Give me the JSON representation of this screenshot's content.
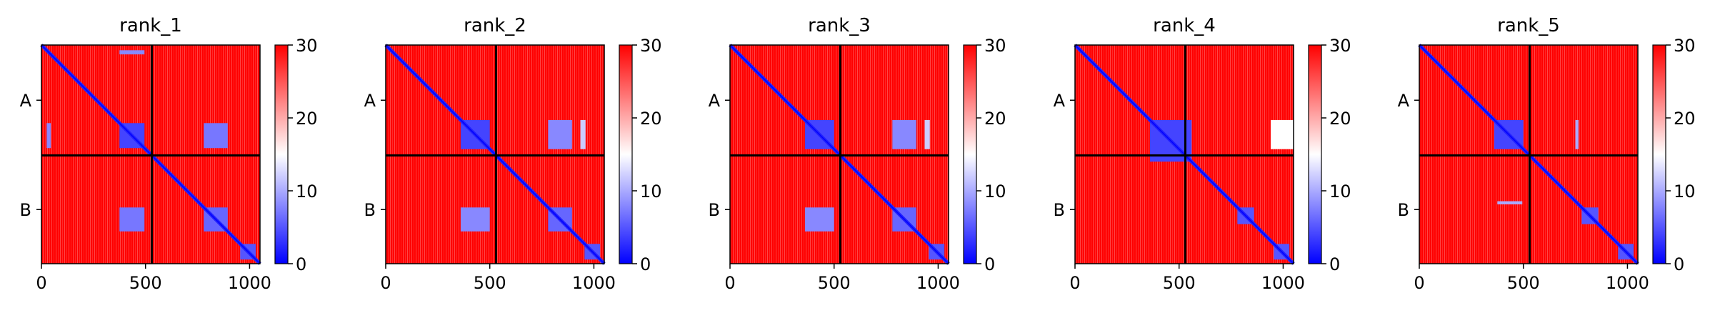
{
  "chart_data": {
    "type": "heatmap",
    "colormap": {
      "name": "bwr",
      "low": "#0000ff",
      "mid": "#ffffff",
      "high": "#ff0000"
    },
    "colorbar": {
      "range": [
        0,
        30
      ],
      "ticks": [
        "0",
        "10",
        "20",
        "30"
      ]
    },
    "shared": {
      "x_range": [
        0,
        1050
      ],
      "y_range": [
        0,
        1050
      ],
      "x_ticks": [
        "0",
        "500",
        "1000"
      ],
      "chain_boundary": 530,
      "chains": [
        "A",
        "B"
      ],
      "chain_label_positions": [
        265,
        790
      ]
    },
    "panels": [
      {
        "title": "rank_1",
        "blocks": [
          {
            "x": [
              375,
              495
            ],
            "y": [
              375,
              495
            ],
            "value": 4
          },
          {
            "x": [
              780,
              895
            ],
            "y": [
              780,
              895
            ],
            "value": 6
          },
          {
            "x": [
              955,
              1030
            ],
            "y": [
              955,
              1030
            ],
            "value": 5
          },
          {
            "x": [
              375,
              495
            ],
            "y": [
              780,
              895
            ],
            "value": 7
          },
          {
            "x": [
              780,
              895
            ],
            "y": [
              375,
              495
            ],
            "value": 7
          },
          {
            "x": [
              25,
              45
            ],
            "y": [
              375,
              495
            ],
            "value": 8
          },
          {
            "x": [
              375,
              495
            ],
            "y": [
              25,
              45
            ],
            "value": 8
          }
        ]
      },
      {
        "title": "rank_2",
        "blocks": [
          {
            "x": [
              360,
              500
            ],
            "y": [
              360,
              500
            ],
            "value": 4
          },
          {
            "x": [
              780,
              895
            ],
            "y": [
              780,
              895
            ],
            "value": 6
          },
          {
            "x": [
              955,
              1030
            ],
            "y": [
              955,
              1030
            ],
            "value": 5
          },
          {
            "x": [
              360,
              500
            ],
            "y": [
              780,
              895
            ],
            "value": 8
          },
          {
            "x": [
              780,
              895
            ],
            "y": [
              360,
              500
            ],
            "value": 8
          },
          {
            "x": [
              935,
              960
            ],
            "y": [
              360,
              500
            ],
            "value": 12
          }
        ]
      },
      {
        "title": "rank_3",
        "blocks": [
          {
            "x": [
              360,
              500
            ],
            "y": [
              360,
              500
            ],
            "value": 4
          },
          {
            "x": [
              780,
              895
            ],
            "y": [
              780,
              895
            ],
            "value": 6
          },
          {
            "x": [
              955,
              1030
            ],
            "y": [
              955,
              1030
            ],
            "value": 5
          },
          {
            "x": [
              360,
              500
            ],
            "y": [
              780,
              895
            ],
            "value": 8
          },
          {
            "x": [
              780,
              895
            ],
            "y": [
              360,
              500
            ],
            "value": 8
          },
          {
            "x": [
              935,
              960
            ],
            "y": [
              360,
              500
            ],
            "value": 12
          }
        ]
      },
      {
        "title": "rank_4",
        "blocks": [
          {
            "x": [
              360,
              560
            ],
            "y": [
              360,
              560
            ],
            "value": 4
          },
          {
            "x": [
              780,
              860
            ],
            "y": [
              780,
              860
            ],
            "value": 5
          },
          {
            "x": [
              955,
              1030
            ],
            "y": [
              955,
              1030
            ],
            "value": 5
          },
          {
            "x": [
              940,
              1050
            ],
            "y": [
              360,
              500
            ],
            "value": 15
          }
        ]
      },
      {
        "title": "rank_5",
        "blocks": [
          {
            "x": [
              360,
              500
            ],
            "y": [
              360,
              500
            ],
            "value": 4
          },
          {
            "x": [
              780,
              860
            ],
            "y": [
              780,
              860
            ],
            "value": 5
          },
          {
            "x": [
              955,
              1030
            ],
            "y": [
              955,
              1030
            ],
            "value": 5
          },
          {
            "x": [
              750,
              765
            ],
            "y": [
              360,
              500
            ],
            "value": 10
          },
          {
            "x": [
              375,
              495
            ],
            "y": [
              750,
              765
            ],
            "value": 10
          }
        ]
      }
    ]
  }
}
